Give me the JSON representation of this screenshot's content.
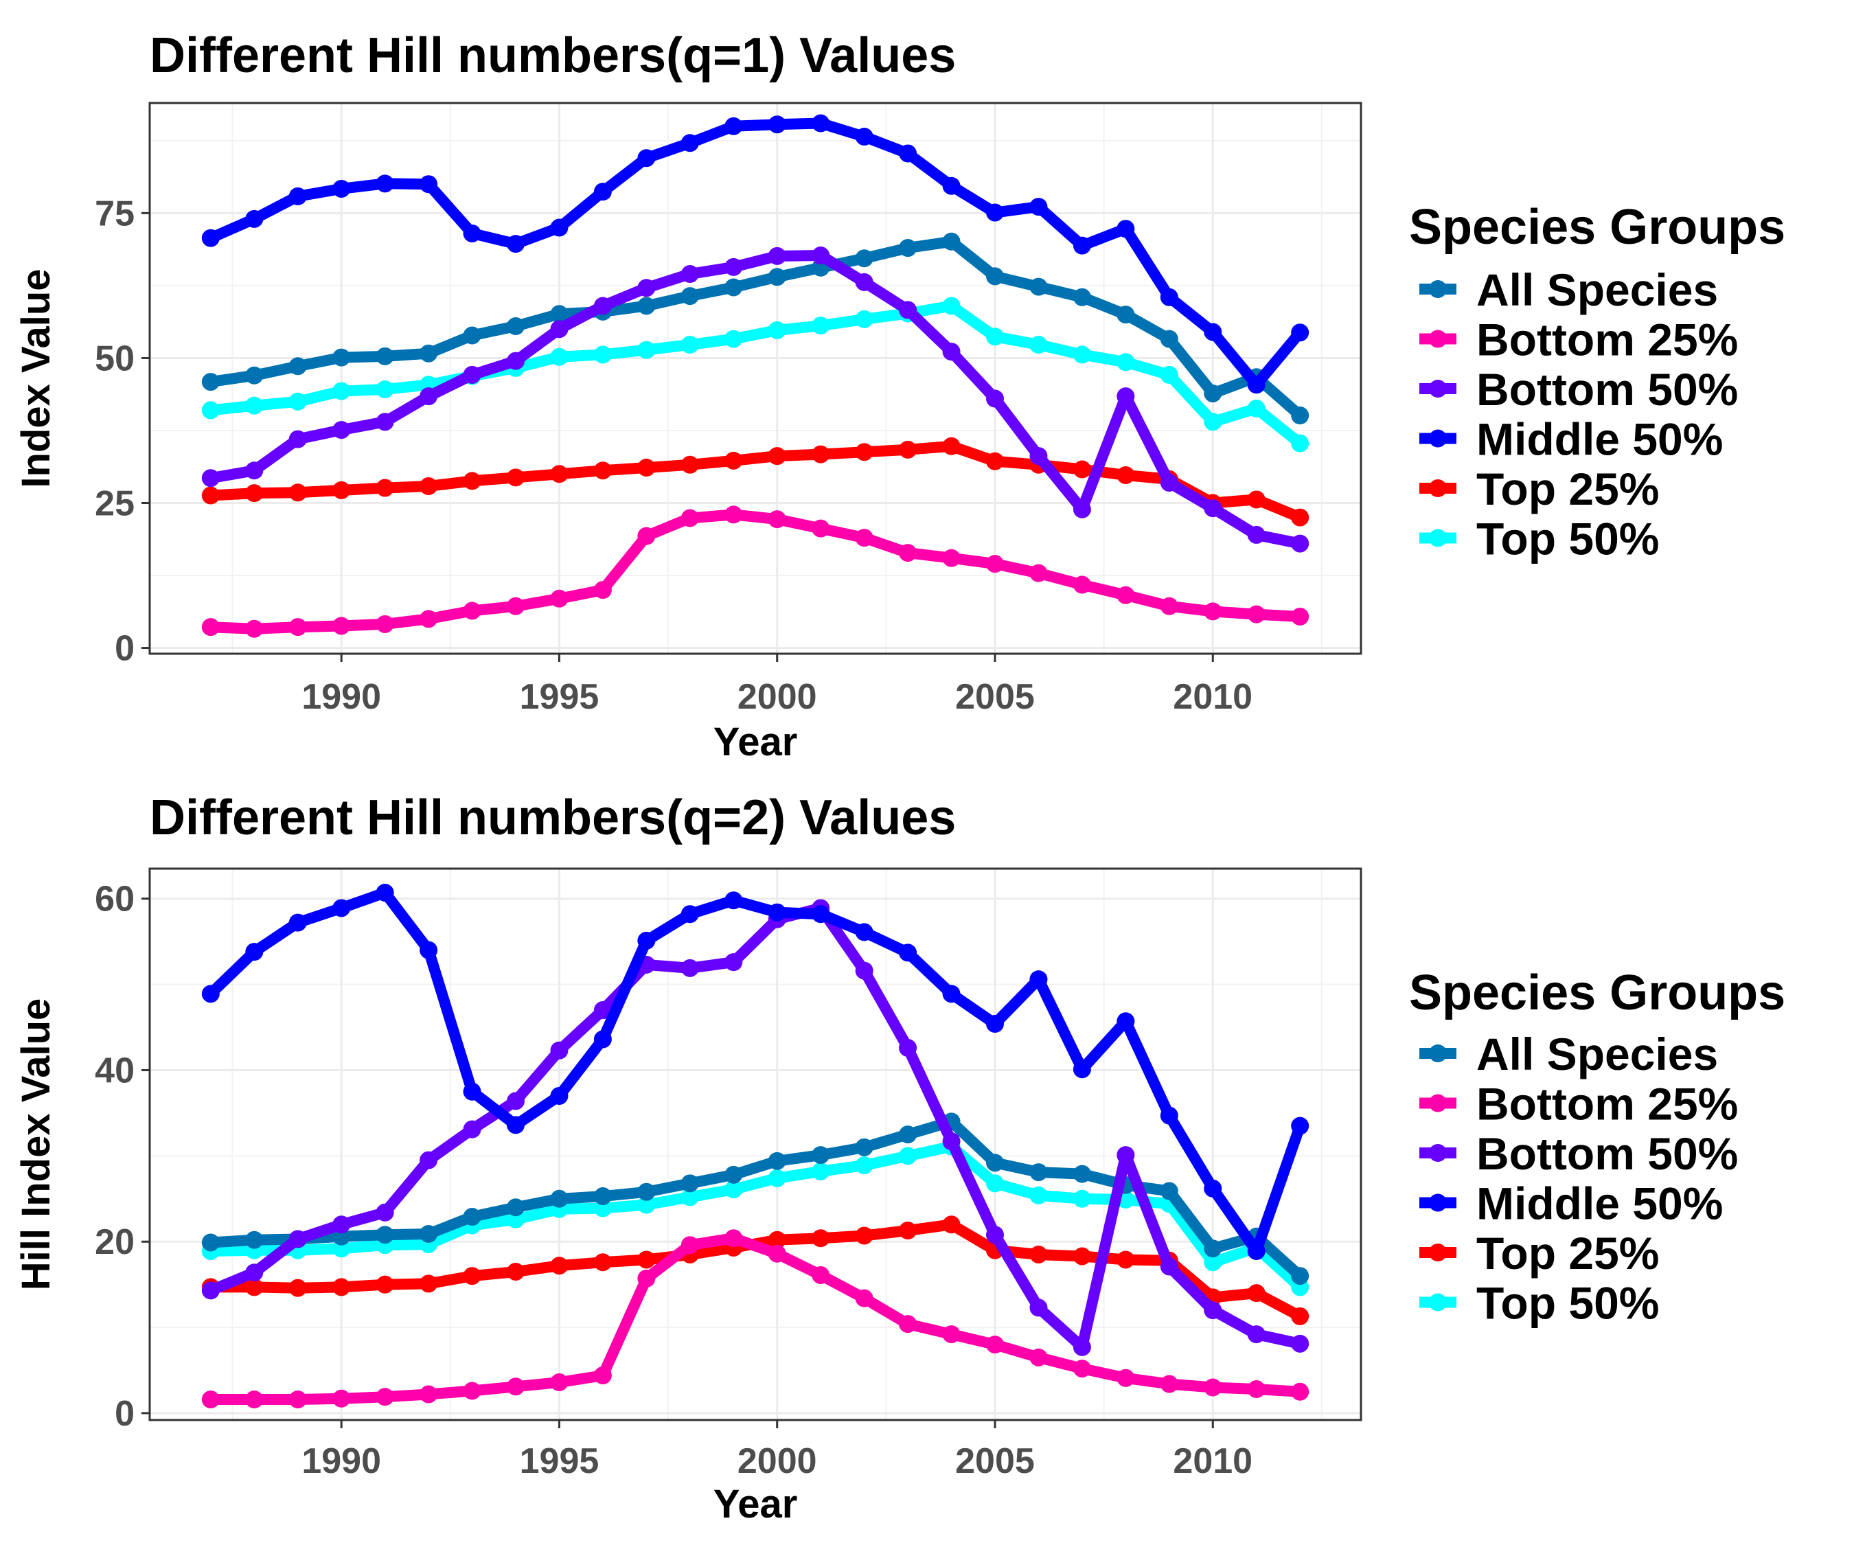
{
  "chart_data": [
    {
      "type": "line",
      "title": "Different Hill numbers(q=1) Values",
      "xlabel": "Year",
      "ylabel": "Index Value",
      "xlim": [
        1985.6,
        2013.4
      ],
      "ylim": [
        -1,
        94
      ],
      "x_ticks": [
        1990,
        1995,
        2000,
        2005,
        2010
      ],
      "y_ticks": [
        0,
        25,
        50,
        75
      ],
      "grid": true,
      "legend": {
        "title": "Species Groups",
        "placement": "right",
        "items": [
          "All Species",
          "Bottom 25%",
          "Bottom 50%",
          "Middle 50%",
          "Top 25%",
          "Top 50%"
        ]
      },
      "x": [
        1987,
        1988,
        1989,
        1990,
        1991,
        1992,
        1993,
        1994,
        1995,
        1996,
        1997,
        1998,
        1999,
        2000,
        2001,
        2002,
        2003,
        2004,
        2005,
        2006,
        2007,
        2008,
        2009,
        2010,
        2011,
        2012
      ],
      "series": [
        {
          "name": "Top 25%",
          "color": "#ff0000",
          "values": [
            26.3,
            26.7,
            26.8,
            27.2,
            27.6,
            27.9,
            28.8,
            29.4,
            30.0,
            30.6,
            31.1,
            31.6,
            32.3,
            33.1,
            33.4,
            33.8,
            34.2,
            34.8,
            32.2,
            31.6,
            30.8,
            29.8,
            29.1,
            25.0,
            25.6,
            22.5
          ]
        },
        {
          "name": "Top 50%",
          "color": "#00ffff",
          "values": [
            41.0,
            41.8,
            42.5,
            44.3,
            44.6,
            45.4,
            46.9,
            48.3,
            50.2,
            50.6,
            51.4,
            52.3,
            53.3,
            54.8,
            55.6,
            56.7,
            57.7,
            59.0,
            53.7,
            52.3,
            50.6,
            49.3,
            47.1,
            39.0,
            41.3,
            35.3
          ]
        },
        {
          "name": "All Species",
          "color": "#0072b2",
          "values": [
            45.9,
            47.0,
            48.6,
            50.1,
            50.3,
            50.8,
            53.9,
            55.5,
            57.6,
            58.0,
            59.0,
            60.7,
            62.2,
            64.0,
            65.6,
            67.2,
            69.0,
            70.1,
            64.1,
            62.3,
            60.5,
            57.5,
            53.3,
            43.9,
            46.7,
            40.1
          ]
        },
        {
          "name": "Bottom 25%",
          "color": "#ff00aa",
          "values": [
            3.6,
            3.3,
            3.6,
            3.8,
            4.1,
            5.0,
            6.4,
            7.2,
            8.5,
            10.0,
            19.3,
            22.4,
            23.0,
            22.2,
            20.6,
            19.0,
            16.4,
            15.5,
            14.5,
            12.9,
            10.9,
            9.1,
            7.2,
            6.3,
            5.8,
            5.4
          ]
        },
        {
          "name": "Bottom 50%",
          "color": "#6600ff",
          "values": [
            29.3,
            30.6,
            36.0,
            37.6,
            39.0,
            43.4,
            47.1,
            49.5,
            55.0,
            59.0,
            62.1,
            64.5,
            65.7,
            67.6,
            67.7,
            63.1,
            58.3,
            51.1,
            43.0,
            33.1,
            23.9,
            43.4,
            28.5,
            24.1,
            19.5,
            18.0
          ]
        },
        {
          "name": "Middle 50%",
          "color": "#0000ff",
          "values": [
            70.7,
            74.0,
            77.9,
            79.2,
            80.1,
            80.0,
            71.5,
            69.7,
            72.5,
            78.7,
            84.5,
            87.1,
            90.0,
            90.3,
            90.5,
            88.2,
            85.3,
            79.7,
            75.1,
            76.1,
            69.4,
            72.3,
            60.5,
            54.5,
            45.4,
            54.4
          ]
        }
      ]
    },
    {
      "type": "line",
      "title": "Different Hill numbers(q=2) Values",
      "xlabel": "Year",
      "ylabel": "Hill Index Value",
      "xlim": [
        1985.6,
        2013.4
      ],
      "ylim": [
        -0.8,
        63.5
      ],
      "x_ticks": [
        1990,
        1995,
        2000,
        2005,
        2010
      ],
      "y_ticks": [
        0,
        20,
        40,
        60
      ],
      "grid": true,
      "legend": {
        "title": "Species Groups",
        "placement": "right",
        "items": [
          "All Species",
          "Bottom 25%",
          "Bottom 50%",
          "Middle 50%",
          "Top 25%",
          "Top 50%"
        ]
      },
      "x": [
        1987,
        1988,
        1989,
        1990,
        1991,
        1992,
        1993,
        1994,
        1995,
        1996,
        1997,
        1998,
        1999,
        2000,
        2001,
        2002,
        2003,
        2004,
        2005,
        2006,
        2007,
        2008,
        2009,
        2010,
        2011,
        2012
      ],
      "series": [
        {
          "name": "Top 25%",
          "color": "#ff0000",
          "values": [
            14.7,
            14.7,
            14.6,
            14.7,
            15.0,
            15.1,
            16.0,
            16.5,
            17.2,
            17.6,
            17.9,
            18.5,
            19.3,
            20.2,
            20.4,
            20.7,
            21.3,
            22.0,
            19.0,
            18.5,
            18.3,
            17.9,
            17.8,
            13.5,
            14.0,
            11.3
          ]
        },
        {
          "name": "Top 50%",
          "color": "#00ffff",
          "values": [
            18.9,
            19.0,
            19.0,
            19.2,
            19.6,
            19.7,
            21.9,
            22.6,
            23.8,
            23.9,
            24.3,
            25.2,
            26.1,
            27.4,
            28.2,
            28.9,
            30.0,
            31.1,
            26.8,
            25.4,
            25.0,
            24.9,
            24.4,
            17.6,
            19.3,
            14.7
          ]
        },
        {
          "name": "All Species",
          "color": "#0072b2",
          "values": [
            19.9,
            20.2,
            20.3,
            20.6,
            20.8,
            20.9,
            22.9,
            24.0,
            25.0,
            25.3,
            25.8,
            26.8,
            27.8,
            29.4,
            30.1,
            31.0,
            32.5,
            34.0,
            29.2,
            28.1,
            27.9,
            26.6,
            25.9,
            19.2,
            20.6,
            16.0
          ]
        },
        {
          "name": "Bottom 25%",
          "color": "#ff00aa",
          "values": [
            1.6,
            1.6,
            1.6,
            1.7,
            1.9,
            2.2,
            2.6,
            3.1,
            3.6,
            4.4,
            15.7,
            19.6,
            20.4,
            18.6,
            16.1,
            13.4,
            10.4,
            9.2,
            8.0,
            6.5,
            5.2,
            4.1,
            3.4,
            3.0,
            2.8,
            2.5
          ]
        },
        {
          "name": "Bottom 50%",
          "color": "#6600ff",
          "values": [
            14.3,
            16.4,
            20.3,
            22.0,
            23.4,
            29.5,
            33.1,
            36.4,
            42.3,
            47.0,
            52.3,
            51.9,
            52.6,
            57.6,
            58.9,
            51.6,
            42.6,
            31.7,
            20.8,
            12.3,
            7.7,
            30.1,
            17.1,
            12.0,
            9.2,
            8.1
          ]
        },
        {
          "name": "Middle 50%",
          "color": "#0000ff",
          "values": [
            48.9,
            53.8,
            57.2,
            58.9,
            60.7,
            54.0,
            37.5,
            33.6,
            37.0,
            43.6,
            55.1,
            58.2,
            59.8,
            58.4,
            58.2,
            56.1,
            53.7,
            48.9,
            45.4,
            50.6,
            40.1,
            45.7,
            34.7,
            26.2,
            18.9,
            33.5
          ]
        }
      ]
    }
  ]
}
